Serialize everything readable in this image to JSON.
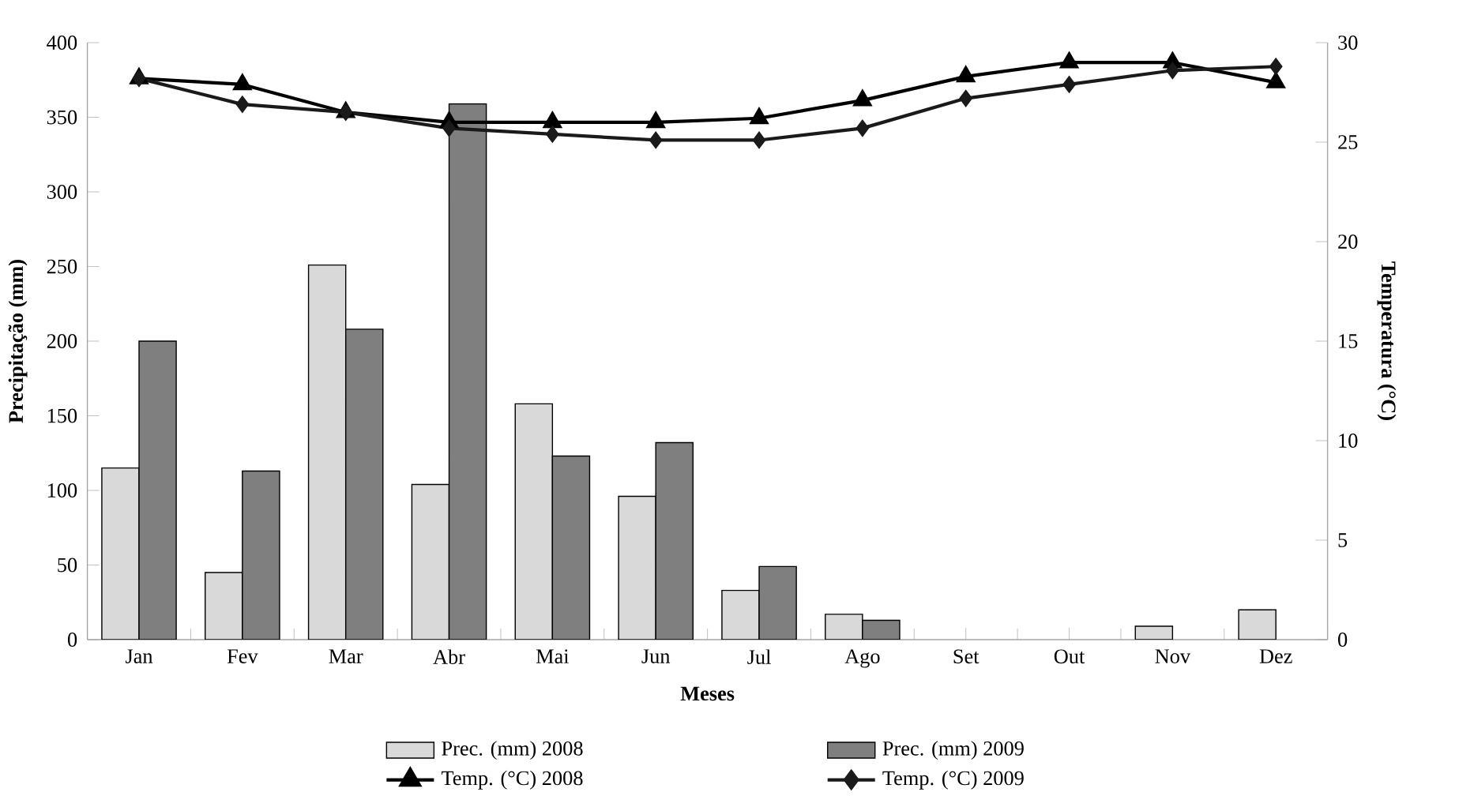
{
  "chart_data": {
    "type": "bar",
    "xlabel": "Meses",
    "ylabel": "Precipitação (mm)",
    "y2label": "Temperatura (°C)",
    "categories": [
      "Jan",
      "Fev",
      "Mar",
      "Abr",
      "Mai",
      "Jun",
      "Jul",
      "Ago",
      "Set",
      "Out",
      "Nov",
      "Dez"
    ],
    "series": [
      {
        "name": "Prec. (mm) 2008",
        "color": "#d9d9d9",
        "values": [
          115,
          45,
          251,
          104,
          158,
          96,
          33,
          17,
          null,
          null,
          9,
          20
        ]
      },
      {
        "name": "Prec. (mm) 2009",
        "color": "#7f7f7f",
        "values": [
          200,
          113,
          208,
          359,
          123,
          132,
          49,
          13,
          null,
          null,
          null,
          null
        ]
      },
      {
        "name": "Temp. (°C) 2008",
        "type": "line",
        "axis": "y2",
        "marker": "triangle",
        "color": "#000000",
        "values": [
          28.2,
          27.9,
          26.5,
          26.0,
          26.0,
          26.0,
          26.2,
          27.1,
          28.3,
          29.0,
          29.0,
          28.0
        ]
      },
      {
        "name": "Temp. (°C) 2009",
        "type": "line",
        "axis": "y2",
        "marker": "diamond",
        "color": "#1a1a1a",
        "values": [
          28.2,
          26.9,
          26.5,
          25.7,
          25.4,
          25.1,
          25.1,
          25.7,
          27.2,
          27.9,
          28.6,
          28.8
        ]
      }
    ],
    "ylim": [
      0,
      400
    ],
    "yticks": [
      0,
      50,
      100,
      150,
      200,
      250,
      300,
      350,
      400
    ],
    "y2lim": [
      0,
      30
    ],
    "y2ticks": [
      0,
      5,
      10,
      15,
      20,
      25,
      30
    ],
    "grid": false,
    "legend": "bottom"
  }
}
